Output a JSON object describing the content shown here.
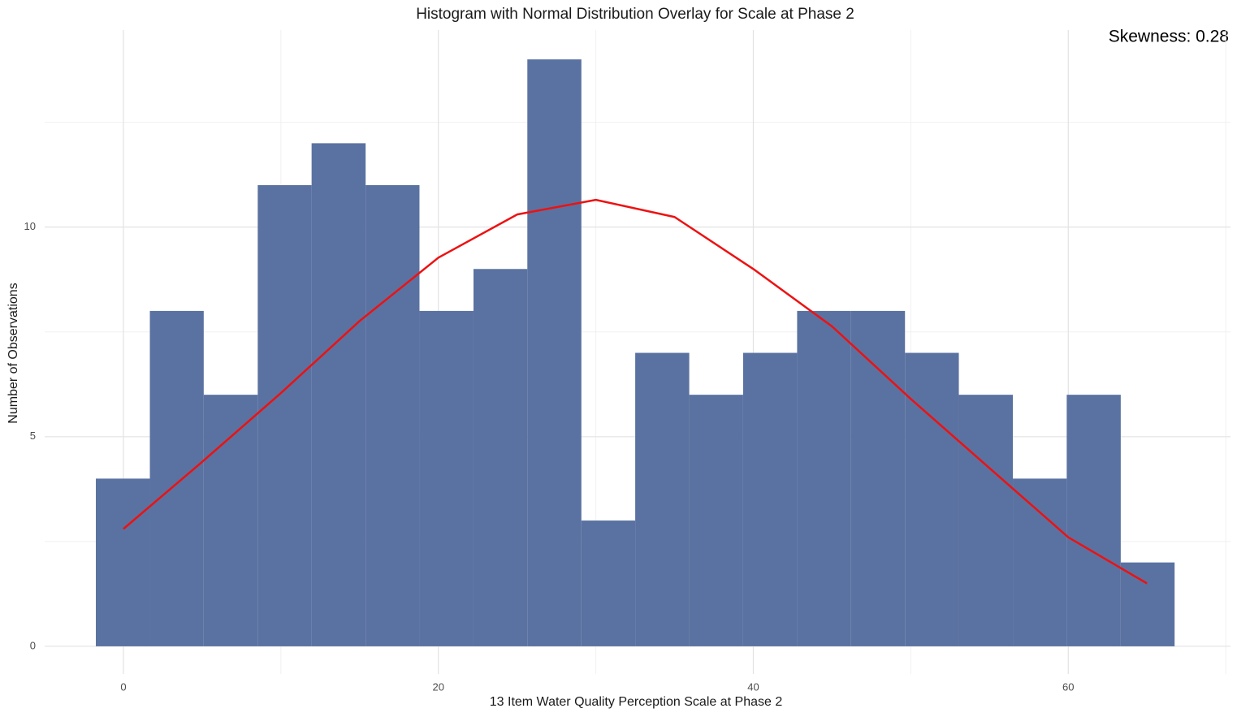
{
  "chart_data": {
    "type": "histogram",
    "title": "Histogram with Normal Distribution Overlay for Scale at Phase 2",
    "x_label": "13 Item Water Quality Perception Scale at Phase 2",
    "y_label": "Number of Observations",
    "annotation": "Skewness: 0.28",
    "bins": [
      -1.75,
      1.68,
      5.1,
      8.53,
      11.95,
      15.38,
      18.8,
      22.23,
      25.65,
      29.08,
      32.5,
      35.93,
      39.35,
      42.78,
      46.2,
      49.63,
      53.05,
      56.48,
      59.9,
      63.33,
      66.75
    ],
    "values": [
      4,
      8,
      6,
      11,
      12,
      11,
      8,
      9,
      14,
      3,
      7,
      6,
      7,
      8,
      8,
      7,
      6,
      4,
      6,
      2
    ],
    "color": "#5a72a1",
    "overlay": {
      "x": [
        0,
        5,
        10,
        15,
        20,
        25,
        30,
        35,
        40,
        45,
        50,
        55,
        60,
        65
      ],
      "values": [
        2.8,
        4.4,
        6.04,
        7.76,
        9.27,
        10.3,
        10.65,
        10.24,
        9.0,
        7.63,
        5.9,
        4.25,
        2.6,
        1.5
      ],
      "color": "#ee1111"
    },
    "xlim": [
      -5,
      70.3
    ],
    "ylim": [
      -0.66,
      14.7
    ],
    "xticks": [
      0,
      20,
      40,
      60
    ],
    "yticks": [
      0,
      5,
      10
    ],
    "x_minor_grid": [
      10,
      30,
      50,
      70
    ],
    "y_minor_grid": [
      2.5,
      7.5,
      12.5
    ],
    "grid": true
  }
}
